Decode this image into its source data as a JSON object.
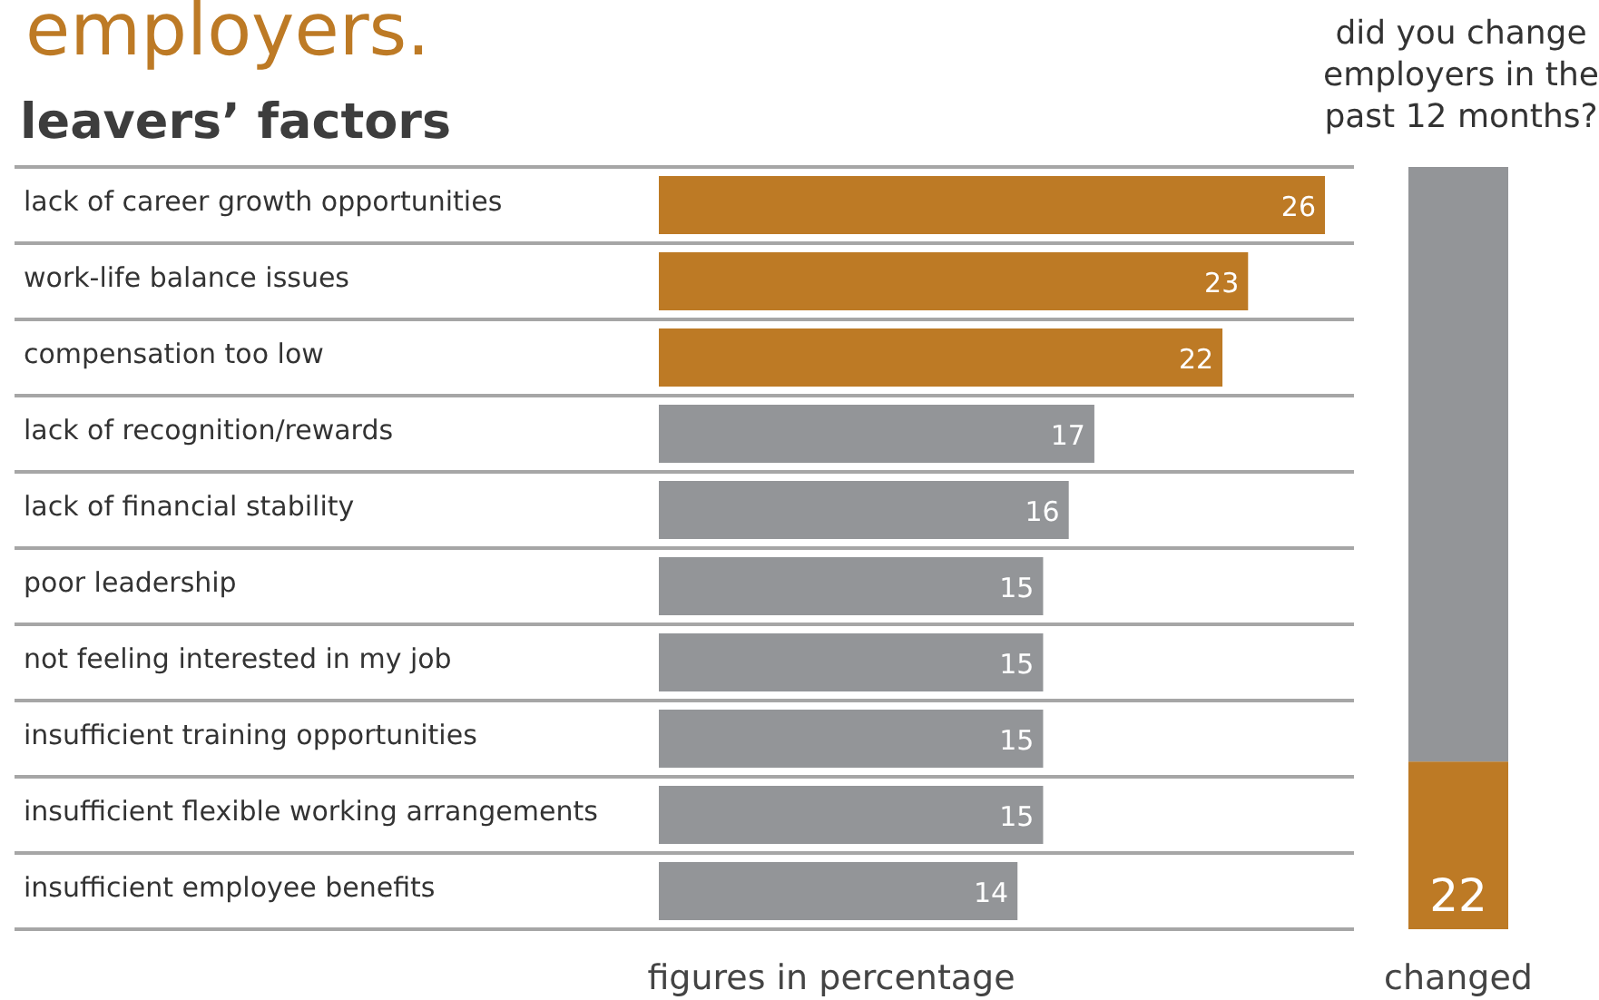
{
  "chart_data": [
    {
      "type": "bar",
      "orientation": "horizontal",
      "title": "employers.",
      "subtitle": "leavers’ factors",
      "xlabel": "figures in percentage",
      "data_labels": true,
      "grid": "y",
      "categories": [
        "lack of career growth opportunities",
        "work-life balance issues",
        "compensation too low",
        "lack of recognition/rewards",
        "lack of financial stability",
        "poor leadership",
        "not feeling interested in my job",
        "insufficient training opportunities",
        "insufficient flexible working arrangements",
        "insufficient employee benefits"
      ],
      "values": [
        26,
        23,
        22,
        17,
        16,
        15,
        15,
        15,
        15,
        14
      ],
      "colors": [
        "#bd7a25",
        "#bd7a25",
        "#bd7a25",
        "#939598",
        "#939598",
        "#939598",
        "#939598",
        "#939598",
        "#939598",
        "#939598"
      ]
    },
    {
      "type": "bar",
      "stacked": true,
      "title": "did you change employers in the past 12 months?",
      "categories": [
        "changed"
      ],
      "ylim": [
        0,
        100
      ],
      "tick_labels": "x",
      "series": [
        {
          "color": "#bd7a25",
          "values": [
            22
          ],
          "value_labels": [
            "22"
          ]
        },
        {
          "color": "#939598",
          "values": [
            78
          ],
          "value_labels": [
            null
          ]
        }
      ]
    }
  ]
}
